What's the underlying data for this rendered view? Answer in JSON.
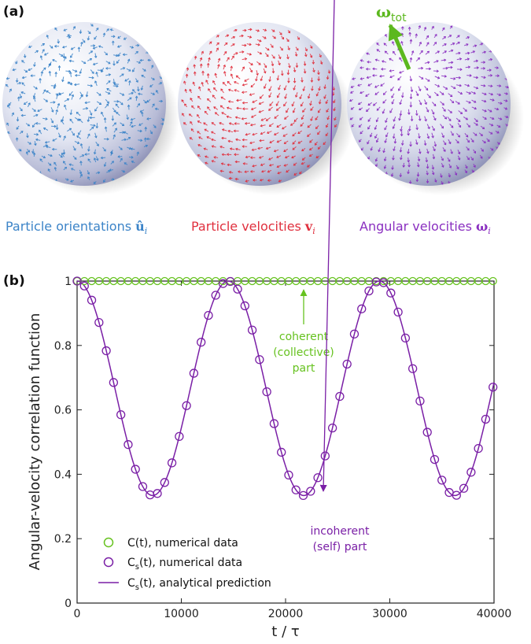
{
  "panel_a": {
    "label": "(a)",
    "spheres": [
      {
        "caption": "Particle orientations",
        "symbol": "û",
        "subscript": "i",
        "color": "#3c84c8"
      },
      {
        "caption": "Particle velocities",
        "symbol": "v",
        "subscript": "i",
        "color": "#e0303e"
      },
      {
        "caption": "Angular velocities",
        "symbol": "ω",
        "subscript": "i",
        "color": "#8a2fc0"
      }
    ],
    "omega_tot": {
      "symbol": "ω",
      "subscript": "tot",
      "color": "#5cb81e"
    }
  },
  "panel_b": {
    "label": "(b)"
  },
  "colors": {
    "coherent": "#66c21f",
    "incoherent": "#7a1fa6",
    "axis": "#222222"
  },
  "chart_data": {
    "type": "line",
    "xlabel": "t / τ",
    "ylabel": "Angular-velocity correlation function",
    "xlim": [
      0,
      40000
    ],
    "ylim": [
      0,
      1
    ],
    "xticks": [
      "0",
      "10000",
      "20000",
      "30000",
      "40000"
    ],
    "yticks": [
      "0",
      "0.2",
      "0.4",
      "0.6",
      "0.8",
      "1"
    ],
    "legend_position": "bottom-left",
    "series": [
      {
        "name": "C(t), numerical data",
        "style": "markers",
        "x_start": 0,
        "x_step": 700,
        "x_end": 40000,
        "formula": "C(t) = 1",
        "constant_value": 1.0
      },
      {
        "name": "Cs(t), numerical data",
        "style": "markers",
        "x_start": 0,
        "x_step": 700,
        "x_end": 40000,
        "formula": "Cs(t) = 2/3 + (1/3)·cos(2πt/T)",
        "mean": 0.667,
        "amplitude": 0.333,
        "period": 14500
      },
      {
        "name": "Cs(t), analytical prediction",
        "style": "line",
        "formula": "Cs(t) = 2/3 + (1/3)·cos(2πt/T)",
        "mean": 0.667,
        "amplitude": 0.333,
        "period": 14500
      }
    ],
    "legend": [
      {
        "text": "C(t), numerical data",
        "base": "C",
        "sub": "",
        "rest": "(t), numerical data"
      },
      {
        "text": "Cs(t), numerical data",
        "base": "C",
        "sub": "s",
        "rest": "(t), numerical data"
      },
      {
        "text": "Cs(t), analytical prediction",
        "base": "C",
        "sub": "s",
        "rest": "(t), analytical prediction"
      }
    ],
    "annotations": {
      "coherent": [
        "coherent",
        "(collective)",
        "part"
      ],
      "incoherent": [
        "incoherent",
        "(self) part"
      ]
    }
  }
}
